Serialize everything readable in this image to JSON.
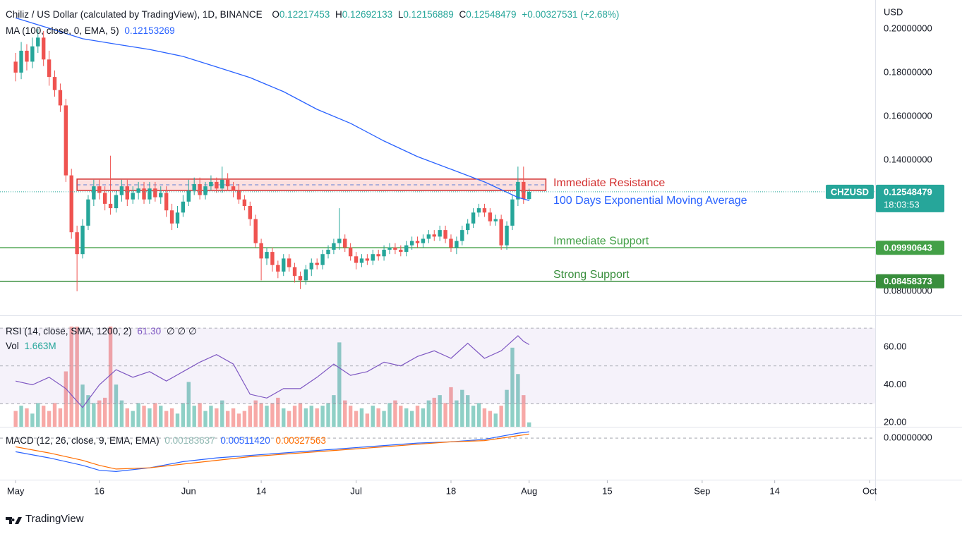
{
  "chart_data": [
    {
      "type": "candlestick",
      "title": "Chiliz / US Dollar (calculated by TradingView), 1D, BINANCE",
      "ohlc_labels": [
        "O",
        "H",
        "L",
        "C"
      ],
      "ohlc_values": [
        "0.12217453",
        "0.12692133",
        "0.12156889",
        "0.12548479"
      ],
      "change": "+0.00327531 (+2.68%)",
      "currency": "USD",
      "up_color": "#26a69a",
      "down_color": "#ef5350",
      "x": [
        0,
        1,
        2,
        3,
        4,
        5,
        6,
        7,
        8,
        9,
        10,
        11,
        12,
        13,
        14,
        15,
        16,
        17,
        18,
        19,
        20,
        21,
        22,
        23,
        24,
        25,
        26,
        27,
        28,
        29,
        30,
        31,
        32,
        33,
        34,
        35,
        36,
        37,
        38,
        39,
        40,
        41,
        42,
        43,
        44,
        45,
        46,
        47,
        48,
        49,
        50,
        51,
        52,
        53,
        54,
        55,
        56,
        57,
        58,
        59,
        60,
        61,
        62,
        63,
        64,
        65,
        66,
        67,
        68,
        69,
        70,
        71,
        72,
        73,
        74,
        75,
        76,
        77,
        78,
        79,
        80,
        81,
        82,
        83,
        84,
        85,
        86,
        87,
        88,
        89,
        90,
        91,
        92
      ],
      "open": [
        0.185,
        0.18,
        0.19,
        0.185,
        0.192,
        0.196,
        0.186,
        0.178,
        0.172,
        0.165,
        0.133,
        0.107,
        0.097,
        0.11,
        0.122,
        0.128,
        0.125,
        0.12,
        0.118,
        0.124,
        0.128,
        0.122,
        0.125,
        0.127,
        0.122,
        0.127,
        0.123,
        0.125,
        0.117,
        0.111,
        0.116,
        0.121,
        0.126,
        0.129,
        0.124,
        0.128,
        0.13,
        0.127,
        0.131,
        0.128,
        0.126,
        0.122,
        0.119,
        0.113,
        0.102,
        0.095,
        0.098,
        0.092,
        0.089,
        0.095,
        0.091,
        0.087,
        0.085,
        0.09,
        0.093,
        0.092,
        0.097,
        0.099,
        0.102,
        0.104,
        0.1,
        0.096,
        0.093,
        0.095,
        0.094,
        0.097,
        0.096,
        0.099,
        0.1,
        0.099,
        0.098,
        0.101,
        0.103,
        0.102,
        0.104,
        0.106,
        0.105,
        0.108,
        0.104,
        0.1,
        0.103,
        0.108,
        0.111,
        0.116,
        0.118,
        0.116,
        0.112,
        0.113,
        0.101,
        0.11,
        0.122,
        0.13,
        0.12217453
      ],
      "high": [
        0.189,
        0.194,
        0.193,
        0.196,
        0.2,
        0.199,
        0.19,
        0.181,
        0.175,
        0.168,
        0.136,
        0.11,
        0.113,
        0.124,
        0.131,
        0.131,
        0.128,
        0.142,
        0.126,
        0.131,
        0.131,
        0.128,
        0.13,
        0.13,
        0.13,
        0.13,
        0.128,
        0.128,
        0.12,
        0.119,
        0.124,
        0.131,
        0.132,
        0.132,
        0.13,
        0.133,
        0.132,
        0.137,
        0.134,
        0.13,
        0.129,
        0.124,
        0.121,
        0.115,
        0.104,
        0.1,
        0.1,
        0.094,
        0.097,
        0.097,
        0.093,
        0.089,
        0.092,
        0.095,
        0.095,
        0.099,
        0.101,
        0.104,
        0.118,
        0.106,
        0.102,
        0.098,
        0.097,
        0.097,
        0.099,
        0.099,
        0.101,
        0.102,
        0.102,
        0.101,
        0.103,
        0.105,
        0.105,
        0.106,
        0.108,
        0.108,
        0.11,
        0.11,
        0.106,
        0.105,
        0.11,
        0.113,
        0.118,
        0.12,
        0.12,
        0.118,
        0.115,
        0.115,
        0.112,
        0.124,
        0.137,
        0.137,
        0.12692133
      ],
      "low": [
        0.176,
        0.177,
        0.181,
        0.182,
        0.189,
        0.183,
        0.174,
        0.169,
        0.162,
        0.13,
        0.104,
        0.08,
        0.095,
        0.108,
        0.119,
        0.122,
        0.117,
        0.115,
        0.116,
        0.121,
        0.119,
        0.12,
        0.122,
        0.12,
        0.12,
        0.121,
        0.12,
        0.114,
        0.108,
        0.109,
        0.114,
        0.119,
        0.124,
        0.122,
        0.122,
        0.126,
        0.125,
        0.125,
        0.126,
        0.123,
        0.12,
        0.117,
        0.11,
        0.1,
        0.085,
        0.092,
        0.089,
        0.086,
        0.087,
        0.089,
        0.084,
        0.081,
        0.083,
        0.087,
        0.09,
        0.09,
        0.095,
        0.097,
        0.099,
        0.098,
        0.094,
        0.09,
        0.091,
        0.092,
        0.092,
        0.094,
        0.094,
        0.097,
        0.097,
        0.096,
        0.096,
        0.099,
        0.1,
        0.1,
        0.102,
        0.103,
        0.103,
        0.102,
        0.098,
        0.097,
        0.101,
        0.106,
        0.109,
        0.114,
        0.114,
        0.11,
        0.11,
        0.099,
        0.099,
        0.108,
        0.119,
        0.12,
        0.12156889
      ],
      "close": [
        0.18,
        0.19,
        0.185,
        0.192,
        0.196,
        0.186,
        0.178,
        0.172,
        0.165,
        0.133,
        0.107,
        0.097,
        0.11,
        0.122,
        0.128,
        0.125,
        0.12,
        0.118,
        0.124,
        0.128,
        0.122,
        0.125,
        0.127,
        0.122,
        0.127,
        0.123,
        0.125,
        0.117,
        0.111,
        0.116,
        0.121,
        0.126,
        0.129,
        0.124,
        0.128,
        0.13,
        0.127,
        0.131,
        0.128,
        0.126,
        0.122,
        0.119,
        0.113,
        0.102,
        0.095,
        0.098,
        0.092,
        0.089,
        0.095,
        0.091,
        0.087,
        0.085,
        0.09,
        0.093,
        0.092,
        0.097,
        0.099,
        0.102,
        0.104,
        0.1,
        0.096,
        0.093,
        0.095,
        0.094,
        0.097,
        0.096,
        0.099,
        0.1,
        0.099,
        0.098,
        0.101,
        0.103,
        0.102,
        0.104,
        0.106,
        0.105,
        0.108,
        0.104,
        0.1,
        0.103,
        0.108,
        0.111,
        0.116,
        0.118,
        0.116,
        0.112,
        0.113,
        0.101,
        0.11,
        0.122,
        0.13,
        0.12217453,
        0.12548479
      ],
      "moving_average": {
        "name": "MA (100, close, 0, EMA, 5)",
        "value_label": "0.12153269",
        "color": "#2962ff",
        "annotation": "100 Days Exponential Moving Average",
        "x": [
          0,
          6,
          12,
          18,
          24,
          30,
          36,
          42,
          48,
          54,
          60,
          66,
          72,
          78,
          84,
          90,
          92
        ],
        "values": [
          0.205,
          0.2003,
          0.1955,
          0.193,
          0.1906,
          0.1874,
          0.1826,
          0.1777,
          0.1713,
          0.1632,
          0.1568,
          0.1487,
          0.1416,
          0.1358,
          0.13,
          0.1229,
          0.12153269
        ]
      },
      "zones": [
        {
          "name": "Immediate Resistance",
          "low": 0.1261,
          "high": 0.1313,
          "start": 11,
          "end": 95,
          "color": "#d32f2f"
        }
      ],
      "levels": [
        {
          "name": "Immediate Support",
          "value": 0.09990643,
          "label": "0.09990643",
          "color": "#43a047"
        },
        {
          "name": "Strong Support",
          "value": 0.08458373,
          "label": "0.08458373",
          "color": "#388e3c"
        }
      ],
      "last_price": {
        "symbol": "CHZUSD",
        "value": 0.12548479,
        "label": "0.12548479",
        "countdown": "18:03:53",
        "color": "#26a69a"
      },
      "xlim": [
        -2.8,
        154
      ],
      "xticks": [
        {
          "value": 0,
          "label": "May"
        },
        {
          "value": 15,
          "label": "16"
        },
        {
          "value": 31,
          "label": "Jun"
        },
        {
          "value": 44,
          "label": "14"
        },
        {
          "value": 61,
          "label": "Jul"
        },
        {
          "value": 78,
          "label": "18"
        },
        {
          "value": 92,
          "label": "Aug"
        },
        {
          "value": 106,
          "label": "15"
        },
        {
          "value": 123,
          "label": "Sep"
        },
        {
          "value": 136,
          "label": "14"
        },
        {
          "value": 153,
          "label": "Oct"
        }
      ],
      "ylim": [
        0.069,
        0.2132
      ],
      "yticks": [
        {
          "value": 0.08,
          "label": "0.08000000"
        },
        {
          "value": 0.14,
          "label": "0.14000000"
        },
        {
          "value": 0.16,
          "label": "0.16000000"
        },
        {
          "value": 0.18,
          "label": "0.18000000"
        },
        {
          "value": 0.2,
          "label": "0.20000000"
        }
      ],
      "grid": false
    },
    {
      "type": "indicator",
      "rsi": {
        "name": "RSI (14, close, SMA, 1200, 2)",
        "value_label": "61.30",
        "extra": "∅ ∅ ∅",
        "color": "#7e57c2",
        "x": [
          0,
          3,
          6,
          9,
          12,
          15,
          18,
          21,
          24,
          27,
          30,
          33,
          36,
          39,
          42,
          45,
          48,
          51,
          54,
          57,
          60,
          63,
          66,
          69,
          72,
          75,
          78,
          81,
          84,
          87,
          90,
          91,
          92
        ],
        "values": [
          42,
          40,
          44,
          38,
          28,
          40,
          48,
          44,
          47,
          42,
          47,
          52,
          56,
          51,
          35,
          33,
          38,
          38,
          44,
          51,
          45,
          47,
          52,
          50,
          55,
          58,
          54,
          62,
          54,
          58,
          66,
          63,
          61.3
        ]
      },
      "band": [
        30,
        70
      ],
      "midline": 50,
      "volume": {
        "name": "Vol",
        "value_label": "1.663M",
        "up_color": "#8fd0c6",
        "down_color": "#f7a9a7",
        "values": [
          6,
          8,
          7,
          5,
          9,
          8,
          6,
          9,
          7,
          21,
          38,
          38,
          16,
          12,
          9,
          10,
          11,
          38,
          16,
          10,
          7,
          6,
          9,
          8,
          7,
          9,
          8,
          6,
          7,
          5,
          9,
          17,
          8,
          9,
          6,
          8,
          7,
          10,
          6,
          7,
          5,
          6,
          8,
          10,
          9,
          8,
          9,
          11,
          7,
          6,
          8,
          9,
          7,
          8,
          7,
          8,
          9,
          12,
          32,
          10,
          8,
          6,
          7,
          5,
          8,
          7,
          6,
          9,
          10,
          8,
          7,
          6,
          8,
          7,
          10,
          11,
          12,
          9,
          15,
          10,
          14,
          12,
          8,
          9,
          7,
          6,
          5,
          8,
          14,
          30,
          20,
          12,
          1.663
        ],
        "vlim": [
          0,
          42
        ]
      },
      "ylim": [
        17.8,
        76.4
      ],
      "yticks": [
        {
          "value": 20,
          "label": "20.00"
        },
        {
          "value": 40,
          "label": "40.00"
        },
        {
          "value": 60,
          "label": "60.00"
        }
      ]
    },
    {
      "type": "macd",
      "name": "MACD (12, 26, close, 9, EMA, EMA)",
      "histogram_label": "0.00183637",
      "series": [
        {
          "name": "MACD",
          "value_label": "0.00511420",
          "color": "#2962ff",
          "x": [
            0,
            6,
            12,
            15,
            18,
            24,
            30,
            36,
            42,
            48,
            54,
            60,
            66,
            72,
            78,
            84,
            90,
            92
          ],
          "values": [
            -0.011,
            -0.016,
            -0.022,
            -0.026,
            -0.027,
            -0.024,
            -0.019,
            -0.016,
            -0.014,
            -0.012,
            -0.01,
            -0.008,
            -0.006,
            -0.004,
            -0.003,
            -0.001,
            0.004,
            0.0051142
          ]
        },
        {
          "name": "Signal",
          "value_label": "0.00327563",
          "color": "#ff6d00",
          "x": [
            0,
            6,
            12,
            15,
            18,
            24,
            30,
            36,
            42,
            48,
            54,
            60,
            66,
            72,
            78,
            84,
            90,
            92
          ],
          "values": [
            -0.007,
            -0.012,
            -0.018,
            -0.022,
            -0.025,
            -0.024,
            -0.021,
            -0.018,
            -0.015,
            -0.013,
            -0.011,
            -0.009,
            -0.007,
            -0.005,
            -0.003,
            -0.002,
            0.002,
            0.00327563
          ]
        }
      ],
      "ylim": [
        -0.0336,
        0.0086
      ],
      "yticks": [
        {
          "value": 0,
          "label": "0.00000000"
        }
      ]
    }
  ],
  "branding": "TradingView"
}
